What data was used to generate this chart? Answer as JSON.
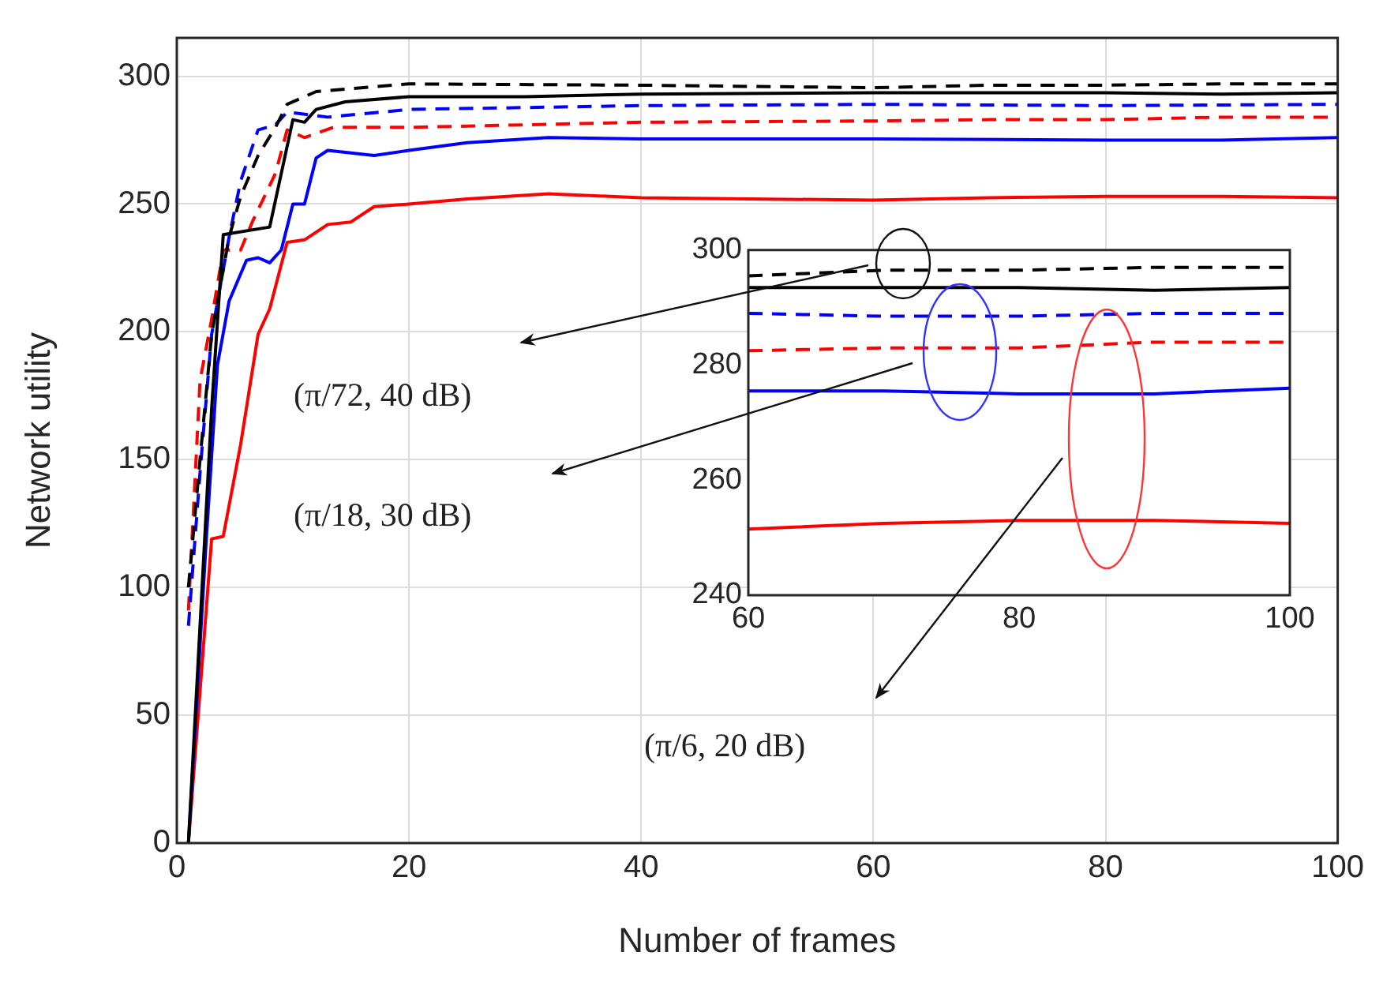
{
  "chart_data": [
    {
      "type": "line",
      "xlabel": "Number of frames",
      "ylabel": "Network utility",
      "xlim": [
        0,
        100
      ],
      "ylim": [
        0,
        315
      ],
      "xticks": [
        0,
        20,
        40,
        60,
        80,
        100
      ],
      "yticks": [
        0,
        50,
        100,
        150,
        200,
        250,
        300
      ],
      "grid": true,
      "annotations": [
        "(π/72, 40 dB)",
        "(π/18, 30 dB)",
        "(π/6, 20 dB)"
      ],
      "series": [
        {
          "color": "#000000",
          "line_style": "dashed",
          "x": [
            1,
            2,
            3,
            4.5,
            5.5,
            7,
            8.5,
            9.5,
            12,
            20,
            40,
            60,
            70,
            80,
            90,
            100
          ],
          "values": [
            100,
            150,
            199,
            237,
            253,
            269,
            280,
            289,
            294,
            297,
            296.5,
            295.5,
            296.5,
            296.5,
            297,
            297
          ]
        },
        {
          "color": "#000000",
          "line_style": "solid",
          "x": [
            1,
            3,
            4,
            8,
            10,
            11,
            12,
            14.5,
            20,
            30,
            40,
            60,
            70,
            80,
            90,
            100
          ],
          "values": [
            0,
            170,
            238,
            241,
            283,
            282,
            287,
            290,
            292,
            292,
            293,
            293.5,
            293.5,
            293.5,
            293,
            293.5
          ]
        },
        {
          "color": "#0000ff",
          "line_style": "dashed",
          "x": [
            1,
            2,
            3,
            4.5,
            5.5,
            7,
            8.5,
            9.5,
            13,
            20,
            40,
            60,
            80,
            100
          ],
          "values": [
            85,
            145,
            199,
            237,
            259,
            279,
            281,
            286,
            284,
            287,
            288.5,
            289,
            288.5,
            289
          ]
        },
        {
          "color": "#ff0000",
          "line_style": "dashed",
          "x": [
            1,
            2,
            3,
            4,
            5.5,
            6.5,
            8.5,
            9.5,
            11,
            13.5,
            20,
            40,
            60,
            70,
            80,
            90,
            100
          ],
          "values": [
            91,
            181,
            205,
            232,
            232,
            243,
            262,
            279,
            276,
            280,
            280,
            282,
            282.5,
            283,
            283,
            284,
            284
          ]
        },
        {
          "color": "#0000ff",
          "line_style": "solid",
          "x": [
            1,
            2.5,
            3.5,
            4.5,
            6,
            7,
            8,
            9,
            10,
            11,
            12,
            13,
            17,
            20,
            25,
            32,
            40,
            60,
            80,
            90,
            100
          ],
          "values": [
            0,
            116,
            187,
            212,
            228,
            229,
            227,
            232,
            250,
            250,
            268,
            271,
            269,
            271,
            274,
            276,
            275.5,
            275.5,
            275,
            275,
            276
          ]
        },
        {
          "color": "#ff0000",
          "line_style": "solid",
          "x": [
            1,
            3,
            4,
            5.5,
            7,
            8,
            9.5,
            11,
            12,
            13,
            15,
            17,
            20,
            25,
            32,
            40,
            60,
            70,
            80,
            90,
            100
          ],
          "values": [
            0,
            119,
            120,
            156,
            199,
            209,
            235,
            236,
            239,
            242,
            243,
            249,
            250,
            252,
            254,
            252.5,
            251.5,
            252.5,
            253,
            253,
            252.5
          ]
        }
      ]
    },
    {
      "type": "line",
      "xlim": [
        60,
        100
      ],
      "ylim": [
        240,
        300
      ],
      "xticks": [
        60,
        80,
        100
      ],
      "yticks": [
        240,
        260,
        280,
        300
      ],
      "series": [
        {
          "color": "#000000",
          "line_style": "dashed",
          "x": [
            60,
            70,
            80,
            90,
            100
          ],
          "values": [
            295.5,
            296.5,
            296.5,
            297,
            297
          ]
        },
        {
          "color": "#000000",
          "line_style": "solid",
          "x": [
            60,
            70,
            80,
            90,
            100
          ],
          "values": [
            293.5,
            293.5,
            293.5,
            293,
            293.5
          ]
        },
        {
          "color": "#0000ff",
          "line_style": "dashed",
          "x": [
            60,
            70,
            80,
            90,
            100
          ],
          "values": [
            289,
            288.5,
            288.5,
            289,
            289
          ]
        },
        {
          "color": "#ff0000",
          "line_style": "dashed",
          "x": [
            60,
            70,
            80,
            90,
            100
          ],
          "values": [
            282.5,
            283,
            283,
            284,
            284
          ]
        },
        {
          "color": "#0000ff",
          "line_style": "solid",
          "x": [
            60,
            70,
            80,
            90,
            100
          ],
          "values": [
            275.5,
            275.5,
            275,
            275,
            276
          ]
        },
        {
          "color": "#ff0000",
          "line_style": "solid",
          "x": [
            60,
            70,
            80,
            90,
            100
          ],
          "values": [
            251.5,
            252.5,
            253,
            253,
            252.5
          ]
        }
      ]
    }
  ]
}
